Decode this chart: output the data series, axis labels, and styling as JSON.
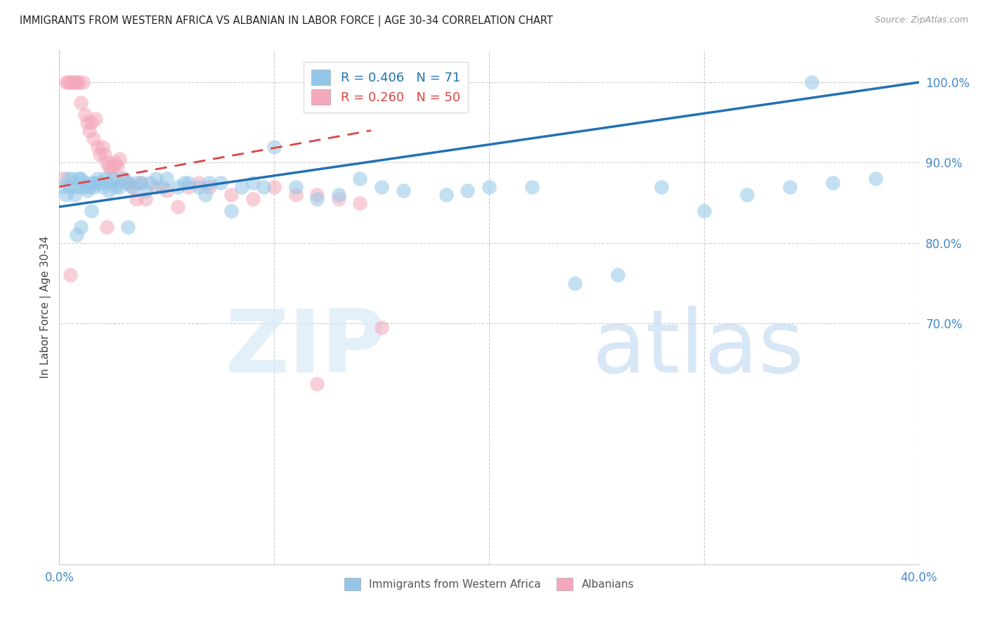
{
  "title": "IMMIGRANTS FROM WESTERN AFRICA VS ALBANIAN IN LABOR FORCE | AGE 30-34 CORRELATION CHART",
  "source": "Source: ZipAtlas.com",
  "ylabel": "In Labor Force | Age 30-34",
  "xlim": [
    0.0,
    0.4
  ],
  "ylim": [
    0.4,
    1.04
  ],
  "blue_R": 0.406,
  "blue_N": 71,
  "pink_R": 0.26,
  "pink_N": 50,
  "blue_color": "#93c6e8",
  "pink_color": "#f4a8bb",
  "blue_line_color": "#2171b5",
  "pink_line_color": "#d44",
  "legend_label_blue": "Immigrants from Western Africa",
  "legend_label_pink": "Albanians",
  "axis_label_color": "#4488cc",
  "ytick_vals": [
    0.7,
    0.8,
    0.9,
    1.0
  ],
  "ytick_labels": [
    "70.0%",
    "80.0%",
    "90.0%",
    "100.0%"
  ],
  "xtick_vals": [
    0.0,
    0.1,
    0.2,
    0.3,
    0.4
  ],
  "xtick_labels": [
    "0.0%",
    "",
    "",
    "",
    "40.0%"
  ],
  "blue_scatter_x": [
    0.002,
    0.003,
    0.004,
    0.005,
    0.006,
    0.007,
    0.008,
    0.009,
    0.01,
    0.011,
    0.012,
    0.013,
    0.014,
    0.015,
    0.016,
    0.017,
    0.018,
    0.019,
    0.02,
    0.021,
    0.022,
    0.023,
    0.025,
    0.026,
    0.027,
    0.028,
    0.03,
    0.032,
    0.034,
    0.036,
    0.038,
    0.04,
    0.042,
    0.045,
    0.048,
    0.05,
    0.055,
    0.058,
    0.06,
    0.065,
    0.068,
    0.07,
    0.075,
    0.08,
    0.085,
    0.09,
    0.095,
    0.1,
    0.11,
    0.12,
    0.13,
    0.14,
    0.15,
    0.16,
    0.18,
    0.19,
    0.2,
    0.22,
    0.24,
    0.26,
    0.28,
    0.3,
    0.32,
    0.34,
    0.36,
    0.38,
    0.032,
    0.015,
    0.01,
    0.008,
    0.35
  ],
  "blue_scatter_y": [
    0.87,
    0.86,
    0.88,
    0.87,
    0.88,
    0.86,
    0.87,
    0.88,
    0.88,
    0.87,
    0.875,
    0.865,
    0.87,
    0.875,
    0.87,
    0.875,
    0.88,
    0.875,
    0.87,
    0.88,
    0.875,
    0.865,
    0.88,
    0.87,
    0.875,
    0.87,
    0.88,
    0.875,
    0.87,
    0.875,
    0.875,
    0.865,
    0.875,
    0.88,
    0.87,
    0.88,
    0.87,
    0.875,
    0.875,
    0.87,
    0.86,
    0.875,
    0.875,
    0.84,
    0.87,
    0.875,
    0.87,
    0.92,
    0.87,
    0.855,
    0.86,
    0.88,
    0.87,
    0.865,
    0.86,
    0.865,
    0.87,
    0.87,
    0.75,
    0.76,
    0.87,
    0.84,
    0.86,
    0.87,
    0.875,
    0.88,
    0.82,
    0.84,
    0.82,
    0.81,
    1.0
  ],
  "pink_scatter_x": [
    0.002,
    0.003,
    0.004,
    0.005,
    0.006,
    0.007,
    0.008,
    0.009,
    0.01,
    0.011,
    0.012,
    0.013,
    0.014,
    0.015,
    0.016,
    0.017,
    0.018,
    0.019,
    0.02,
    0.021,
    0.022,
    0.023,
    0.024,
    0.025,
    0.026,
    0.027,
    0.028,
    0.03,
    0.032,
    0.034,
    0.036,
    0.038,
    0.04,
    0.045,
    0.05,
    0.055,
    0.06,
    0.065,
    0.07,
    0.08,
    0.09,
    0.1,
    0.11,
    0.12,
    0.13,
    0.14,
    0.15,
    0.022,
    0.005,
    0.12
  ],
  "pink_scatter_y": [
    0.88,
    1.0,
    1.0,
    1.0,
    1.0,
    1.0,
    1.0,
    1.0,
    0.975,
    1.0,
    0.96,
    0.95,
    0.94,
    0.95,
    0.93,
    0.955,
    0.92,
    0.91,
    0.92,
    0.91,
    0.9,
    0.895,
    0.89,
    0.895,
    0.9,
    0.895,
    0.905,
    0.88,
    0.875,
    0.87,
    0.855,
    0.875,
    0.855,
    0.87,
    0.865,
    0.845,
    0.87,
    0.875,
    0.87,
    0.86,
    0.855,
    0.87,
    0.86,
    0.86,
    0.855,
    0.85,
    0.695,
    0.82,
    0.76,
    0.625
  ],
  "blue_trend_x": [
    0.0,
    0.4
  ],
  "blue_trend_y": [
    0.845,
    1.0
  ],
  "pink_trend_x": [
    0.0,
    0.145
  ],
  "pink_trend_y": [
    0.87,
    0.94
  ]
}
